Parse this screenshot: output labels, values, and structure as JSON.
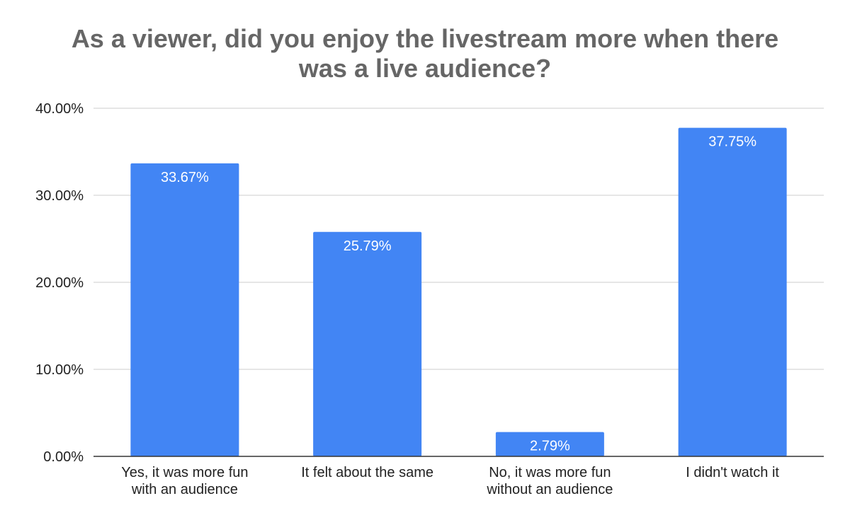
{
  "chart_data": {
    "type": "bar",
    "title_lines": [
      "As a viewer, did you enjoy the livestream more when there",
      "was a live audience?"
    ],
    "categories": [
      [
        "Yes, it was more fun",
        "with an audience"
      ],
      [
        "It felt about the same"
      ],
      [
        "No, it was more fun",
        "without an audience"
      ],
      [
        "I didn't watch it"
      ]
    ],
    "values": [
      33.67,
      25.79,
      2.79,
      37.75
    ],
    "data_labels": [
      "33.67%",
      "25.79%",
      "2.79%",
      "37.75%"
    ],
    "ylim": [
      0,
      40
    ],
    "yticks": [
      0,
      10,
      20,
      30,
      40
    ],
    "ytick_labels": [
      "0.00%",
      "10.00%",
      "20.00%",
      "30.00%",
      "40.00%"
    ],
    "grid": true,
    "legend": "none",
    "colors": {
      "bar": "#4285f4",
      "grid": "#cccccc",
      "axis": "#333333",
      "title": "#666666"
    }
  }
}
